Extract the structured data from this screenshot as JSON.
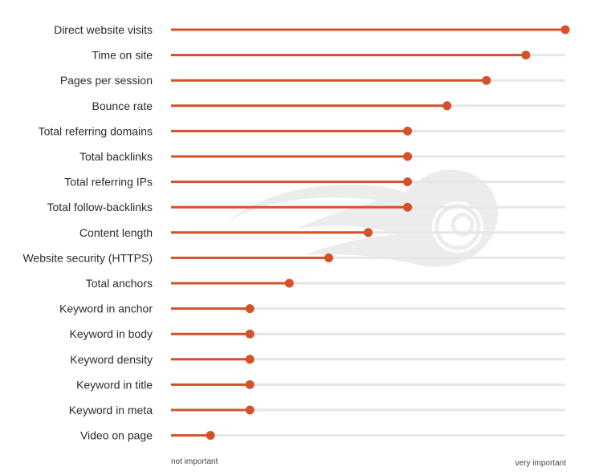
{
  "chart_data": {
    "type": "lollipop",
    "categories": [
      "Direct website visits",
      "Time on site",
      "Pages per session",
      "Bounce rate",
      "Total referring domains",
      "Total backlinks",
      "Total referring IPs",
      "Total follow-backlinks",
      "Content length",
      "Website security (HTTPS)",
      "Total anchors",
      "Keyword in anchor",
      "Keyword in body",
      "Keyword density",
      "Keyword in title",
      "Keyword in meta",
      "Video on page"
    ],
    "values": [
      1.0,
      0.9,
      0.8,
      0.7,
      0.6,
      0.6,
      0.6,
      0.6,
      0.5,
      0.4,
      0.3,
      0.2,
      0.2,
      0.2,
      0.2,
      0.2,
      0.1
    ],
    "xlim": [
      0,
      1
    ],
    "axis": {
      "min_label": "not important",
      "max_label": "very important"
    },
    "grid": false,
    "legend": "none",
    "colors": {
      "stem": "#d4522a",
      "dot": "#d4522a",
      "track": "#e6e6e6",
      "watermark": "#ececec"
    },
    "watermark": "semrush-fireball-logo"
  }
}
